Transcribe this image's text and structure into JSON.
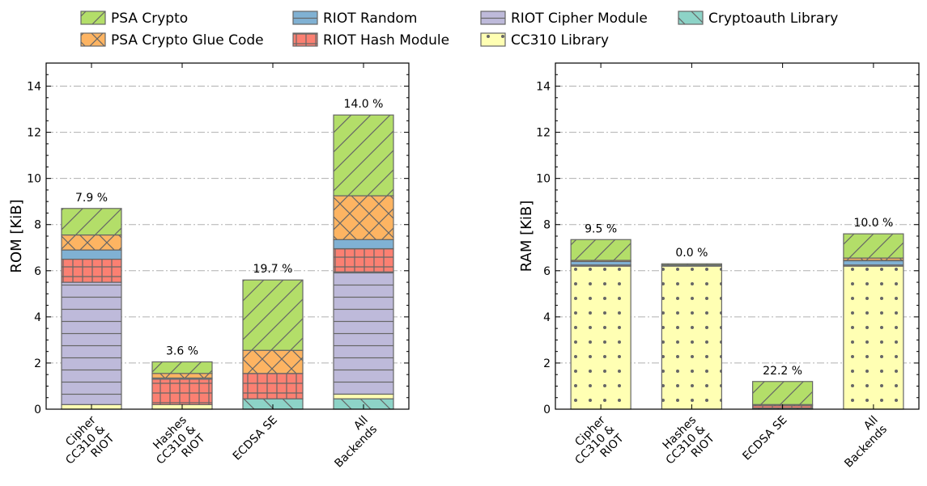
{
  "legend": [
    {
      "name": "PSA Crypto",
      "color": "#b3de69",
      "hatch": "diag"
    },
    {
      "name": "PSA Crypto Glue Code",
      "color": "#fdb462",
      "hatch": "cross"
    },
    {
      "name": "RIOT Random",
      "color": "#80b1d3",
      "hatch": "hline"
    },
    {
      "name": "RIOT Hash Module",
      "color": "#fb8072",
      "hatch": "grid"
    },
    {
      "name": "RIOT Cipher Module",
      "color": "#bebada",
      "hatch": "hline"
    },
    {
      "name": "CC310 Library",
      "color": "#ffffb3",
      "hatch": "dots"
    },
    {
      "name": "Cryptoauth Library",
      "color": "#8dd3c7",
      "hatch": "bdiag"
    }
  ],
  "chart_data": [
    {
      "type": "bar",
      "stacked": true,
      "ylabel": "ROM [KiB]",
      "ylim": [
        0,
        15
      ],
      "yticks": [
        0,
        2,
        4,
        6,
        8,
        10,
        12,
        14
      ],
      "grid": "y-dashdot",
      "categories": [
        [
          "Cipher",
          "CC310 &",
          "RIOT"
        ],
        [
          "Hashes",
          "CC310 &",
          "RIOT"
        ],
        [
          "ECDSA SE"
        ],
        [
          "All",
          "Backends"
        ]
      ],
      "percent_labels": [
        "7.9 %",
        "3.6 %",
        "19.7 %",
        "14.0 %"
      ],
      "series": [
        {
          "name": "Cryptoauth Library",
          "values": [
            0,
            0,
            0.45,
            0.45
          ]
        },
        {
          "name": "CC310 Library",
          "values": [
            0.2,
            0.2,
            0,
            0.2
          ]
        },
        {
          "name": "RIOT Cipher Module",
          "values": [
            5.3,
            0,
            0,
            5.3
          ]
        },
        {
          "name": "RIOT Hash Module",
          "values": [
            1.0,
            1.1,
            1.1,
            1.0
          ]
        },
        {
          "name": "RIOT Random",
          "values": [
            0.4,
            0.05,
            0,
            0.4
          ]
        },
        {
          "name": "PSA Crypto Glue Code",
          "values": [
            0.65,
            0.2,
            1.0,
            1.9
          ]
        },
        {
          "name": "PSA Crypto",
          "values": [
            1.15,
            0.5,
            3.05,
            3.5
          ]
        }
      ]
    },
    {
      "type": "bar",
      "stacked": true,
      "ylabel": "RAM [KiB]",
      "ylim": [
        0,
        15
      ],
      "yticks": [
        0,
        2,
        4,
        6,
        8,
        10,
        12,
        14
      ],
      "grid": "y-dashdot",
      "categories": [
        [
          "Cipher",
          "CC310 &",
          "RIOT"
        ],
        [
          "Hashes",
          "CC310 &",
          "RIOT"
        ],
        [
          "ECDSA SE"
        ],
        [
          "All",
          "Backends"
        ]
      ],
      "percent_labels": [
        "9.5 %",
        "0.0 %",
        "22.2 %",
        "10.0 %"
      ],
      "series": [
        {
          "name": "Cryptoauth Library",
          "values": [
            0,
            0,
            0.05,
            0
          ]
        },
        {
          "name": "CC310 Library",
          "values": [
            6.2,
            6.2,
            0,
            6.2
          ]
        },
        {
          "name": "RIOT Cipher Module",
          "values": [
            0.05,
            0,
            0,
            0.05
          ]
        },
        {
          "name": "RIOT Hash Module",
          "values": [
            0,
            0,
            0.1,
            0
          ]
        },
        {
          "name": "RIOT Random",
          "values": [
            0.15,
            0.05,
            0,
            0.2
          ]
        },
        {
          "name": "PSA Crypto Glue Code",
          "values": [
            0.05,
            0,
            0.05,
            0.1
          ]
        },
        {
          "name": "PSA Crypto",
          "values": [
            0.9,
            0.05,
            1.0,
            1.05
          ]
        }
      ]
    }
  ]
}
